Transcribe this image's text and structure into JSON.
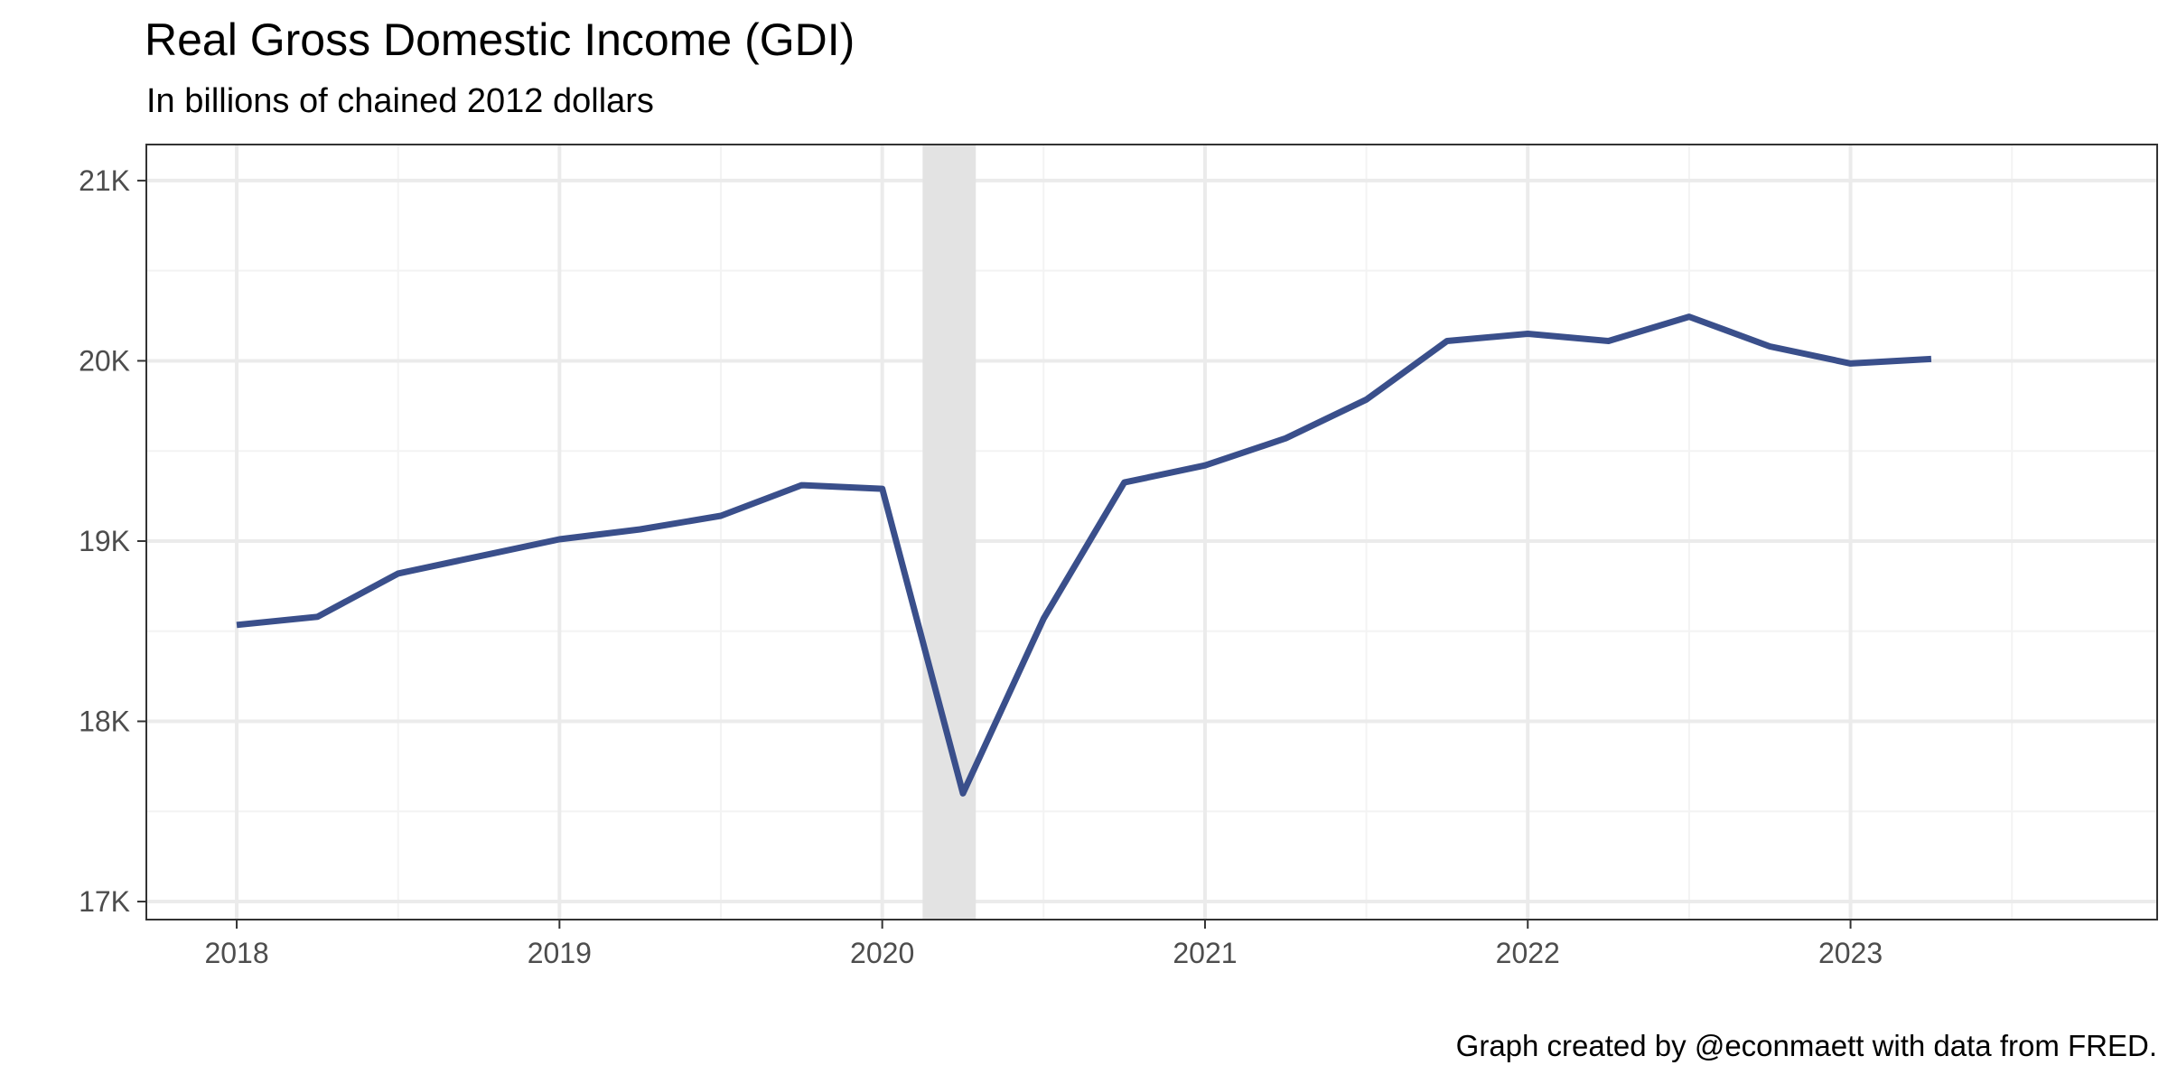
{
  "chart_data": {
    "type": "line",
    "title": "Real Gross Domestic Income (GDI)",
    "subtitle": "In billions of chained 2012 dollars",
    "caption": "Graph created by @econmaett with data from FRED.",
    "xlabel": "",
    "ylabel": "",
    "xlim": [
      2017.72,
      2023.95
    ],
    "ylim": [
      16900,
      21200
    ],
    "x_ticks": [
      {
        "value": 2018,
        "label": "2018"
      },
      {
        "value": 2019,
        "label": "2019"
      },
      {
        "value": 2020,
        "label": "2020"
      },
      {
        "value": 2021,
        "label": "2021"
      },
      {
        "value": 2022,
        "label": "2022"
      },
      {
        "value": 2023,
        "label": "2023"
      }
    ],
    "y_ticks": [
      {
        "value": 17000,
        "label": "17K"
      },
      {
        "value": 18000,
        "label": "18K"
      },
      {
        "value": 19000,
        "label": "19K"
      },
      {
        "value": 20000,
        "label": "20K"
      },
      {
        "value": 21000,
        "label": "21K"
      }
    ],
    "grid": true,
    "recession_shading": [
      {
        "start": 2020.125,
        "end": 2020.29
      }
    ],
    "series": [
      {
        "color": "#3a4f8b",
        "points": [
          {
            "x": 2018.0,
            "y": 18535
          },
          {
            "x": 2018.25,
            "y": 18580
          },
          {
            "x": 2018.5,
            "y": 18820
          },
          {
            "x": 2018.75,
            "y": 18915
          },
          {
            "x": 2019.0,
            "y": 19010
          },
          {
            "x": 2019.25,
            "y": 19065
          },
          {
            "x": 2019.5,
            "y": 19140
          },
          {
            "x": 2019.75,
            "y": 19310
          },
          {
            "x": 2020.0,
            "y": 19290
          },
          {
            "x": 2020.25,
            "y": 17600
          },
          {
            "x": 2020.5,
            "y": 18570
          },
          {
            "x": 2020.75,
            "y": 19325
          },
          {
            "x": 2021.0,
            "y": 19420
          },
          {
            "x": 2021.25,
            "y": 19570
          },
          {
            "x": 2021.5,
            "y": 19785
          },
          {
            "x": 2021.75,
            "y": 20110
          },
          {
            "x": 2022.0,
            "y": 20150
          },
          {
            "x": 2022.25,
            "y": 20110
          },
          {
            "x": 2022.5,
            "y": 20245
          },
          {
            "x": 2022.75,
            "y": 20080
          },
          {
            "x": 2023.0,
            "y": 19985
          },
          {
            "x": 2023.25,
            "y": 20010
          }
        ]
      }
    ],
    "colors": {
      "line": "#3a4f8b",
      "recession": "#e3e3e3",
      "grid_major": "#ebebeb",
      "grid_minor": "#f3f3f3",
      "panel_border": "#333333",
      "tick_text": "#4d4d4d"
    }
  }
}
